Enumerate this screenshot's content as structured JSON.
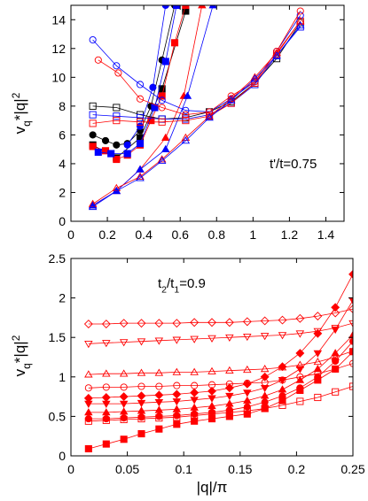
{
  "chart_data": [
    {
      "type": "line",
      "xlabel": "",
      "ylabel": "v_q*|q|^2",
      "annotation": "t'/t=0.75",
      "xlim": [
        0,
        1.5
      ],
      "ylim": [
        0,
        15
      ],
      "xticks": [
        "0",
        "0.2",
        "0.4",
        "0.6",
        "0.8",
        "1",
        "1.2",
        "1.4"
      ],
      "xtick_values": [
        0,
        0.2,
        0.4,
        0.6,
        0.8,
        1.0,
        1.2,
        1.4
      ],
      "yticks": [
        "0",
        "2",
        "4",
        "6",
        "8",
        "10",
        "12",
        "14"
      ],
      "ytick_values": [
        0,
        2,
        4,
        6,
        8,
        10,
        12,
        14
      ],
      "series": [
        {
          "color": "#000000",
          "marker": "filled-circle",
          "x": [
            0.12,
            0.19,
            0.25,
            0.31,
            0.38,
            0.44,
            0.5,
            0.57
          ],
          "y": [
            6.0,
            5.6,
            5.3,
            5.4,
            6.3,
            8.0,
            11.2,
            15.0
          ]
        },
        {
          "color": "#000000",
          "marker": "filled-square",
          "x": [
            0.12,
            0.25,
            0.38,
            0.5,
            0.63
          ],
          "y": [
            5.3,
            4.4,
            5.8,
            9.2,
            14.6
          ]
        },
        {
          "color": "#ff0000",
          "marker": "filled-square",
          "x": [
            0.12,
            0.19,
            0.25,
            0.31,
            0.38,
            0.44,
            0.5,
            0.57,
            0.63
          ],
          "y": [
            5.2,
            4.9,
            4.3,
            4.6,
            5.3,
            7.0,
            8.7,
            12.4,
            15.0
          ]
        },
        {
          "color": "#0000ff",
          "marker": "filled-square",
          "x": [
            0.15,
            0.22,
            0.31,
            0.38,
            0.46,
            0.52,
            0.58
          ],
          "y": [
            4.8,
            4.7,
            4.7,
            5.4,
            7.9,
            11.1,
            15.0
          ]
        },
        {
          "color": "#0000ff",
          "marker": "filled-circle",
          "x": [
            0.31,
            0.38,
            0.45,
            0.52
          ],
          "y": [
            5.3,
            6.6,
            9.3,
            15.0
          ]
        },
        {
          "color": "#ff0000",
          "marker": "filled-triangle",
          "x": [
            0.12,
            0.25,
            0.38,
            0.52,
            0.62,
            0.72
          ],
          "y": [
            1.1,
            2.1,
            3.6,
            5.8,
            8.7,
            15.0
          ]
        },
        {
          "color": "#0000ff",
          "marker": "filled-triangle",
          "x": [
            0.12,
            0.25,
            0.38,
            0.52,
            0.64,
            0.78
          ],
          "y": [
            1.1,
            2.1,
            3.6,
            5.0,
            8.7,
            15.0
          ]
        },
        {
          "color": "#000000",
          "marker": "open-square",
          "x": [
            0.12,
            0.25,
            0.38,
            0.5,
            0.63,
            0.76,
            0.88,
            1.01,
            1.13,
            1.26
          ],
          "y": [
            8.0,
            7.9,
            7.4,
            7.1,
            7.2,
            7.6,
            8.3,
            9.6,
            11.3,
            13.8
          ]
        },
        {
          "color": "#0000ff",
          "marker": "open-square",
          "x": [
            0.12,
            0.25,
            0.38,
            0.5,
            0.63,
            0.76,
            0.88,
            1.01,
            1.13,
            1.26
          ],
          "y": [
            7.4,
            7.3,
            7.2,
            7.1,
            7.1,
            7.4,
            8.2,
            9.5,
            11.5,
            13.5
          ]
        },
        {
          "color": "#ff0000",
          "marker": "open-square",
          "x": [
            0.12,
            0.25,
            0.38,
            0.5,
            0.63,
            0.76,
            0.88,
            1.01,
            1.13,
            1.26
          ],
          "y": [
            6.8,
            7.0,
            6.9,
            6.9,
            7.0,
            7.3,
            8.2,
            9.6,
            11.6,
            13.9
          ]
        },
        {
          "color": "#0000ff",
          "marker": "open-circle",
          "x": [
            0.12,
            0.25,
            0.38,
            0.5,
            0.63,
            0.76,
            0.88,
            1.01,
            1.13,
            1.26
          ],
          "y": [
            12.6,
            10.8,
            9.5,
            8.4,
            7.7,
            7.6,
            8.5,
            9.7,
            11.8,
            14.3
          ]
        },
        {
          "color": "#ff0000",
          "marker": "open-circle",
          "x": [
            0.15,
            0.26,
            0.38,
            0.5,
            0.63,
            0.76,
            0.88,
            1.01,
            1.13,
            1.26
          ],
          "y": [
            11.2,
            10.3,
            8.5,
            7.9,
            7.4,
            7.6,
            8.7,
            9.7,
            11.8,
            14.6
          ]
        },
        {
          "color": "#ff0000",
          "marker": "open-triangle",
          "x": [
            0.12,
            0.25,
            0.38,
            0.5,
            0.63,
            0.76,
            0.88,
            1.01,
            1.13,
            1.26
          ],
          "y": [
            1.2,
            2.3,
            3.1,
            4.3,
            5.8,
            7.3,
            8.5,
            10.0,
            11.7,
            13.9
          ]
        },
        {
          "color": "#0000ff",
          "marker": "open-triangle",
          "x": [
            0.12,
            0.25,
            0.38,
            0.5,
            0.63,
            0.76,
            0.88,
            1.01,
            1.13,
            1.26
          ],
          "y": [
            1.0,
            2.1,
            3.0,
            4.2,
            5.6,
            7.2,
            8.4,
            9.9,
            11.5,
            13.6
          ]
        }
      ]
    },
    {
      "type": "line",
      "xlabel": "|q|/π",
      "ylabel": "v_q*|q|^2",
      "annotation": "t_2/t_1=0.9",
      "xlim": [
        0,
        0.25
      ],
      "ylim": [
        0,
        2.5
      ],
      "xticks": [
        "0",
        "0.05",
        "0.1",
        "0.15",
        "0.2",
        "0.25"
      ],
      "xtick_values": [
        0,
        0.05,
        0.1,
        0.15,
        0.2,
        0.25
      ],
      "yticks": [
        "0",
        "0.5",
        "1",
        "1.5",
        "2",
        "2.5"
      ],
      "ytick_values": [
        0,
        0.5,
        1.0,
        1.5,
        2.0,
        2.5
      ],
      "series": [
        {
          "color": "#ff0000",
          "marker": "open-diamond",
          "x": [
            0.0156,
            0.0313,
            0.0469,
            0.0625,
            0.0781,
            0.0938,
            0.1094,
            0.125,
            0.1406,
            0.1563,
            0.1719,
            0.1875,
            0.2031,
            0.2188,
            0.2344,
            0.25
          ],
          "y": [
            1.67,
            1.67,
            1.68,
            1.68,
            1.68,
            1.68,
            1.69,
            1.69,
            1.69,
            1.7,
            1.71,
            1.72,
            1.74,
            1.77,
            1.81,
            1.86
          ]
        },
        {
          "color": "#ff0000",
          "marker": "open-down-triangle",
          "x": [
            0.0156,
            0.0313,
            0.0469,
            0.0625,
            0.0781,
            0.0938,
            0.1094,
            0.125,
            0.1406,
            0.1563,
            0.1719,
            0.1875,
            0.2031,
            0.2188,
            0.2344,
            0.25
          ],
          "y": [
            1.42,
            1.43,
            1.44,
            1.45,
            1.46,
            1.47,
            1.48,
            1.49,
            1.5,
            1.51,
            1.52,
            1.53,
            1.55,
            1.58,
            1.62,
            1.68
          ]
        },
        {
          "color": "#ff0000",
          "marker": "open-triangle",
          "x": [
            0.0156,
            0.0313,
            0.0469,
            0.0625,
            0.0781,
            0.0938,
            0.1094,
            0.125,
            0.1406,
            0.1563,
            0.1719,
            0.1875,
            0.2031,
            0.2188,
            0.2344,
            0.25
          ],
          "y": [
            1.03,
            1.04,
            1.04,
            1.05,
            1.05,
            1.06,
            1.06,
            1.07,
            1.08,
            1.09,
            1.1,
            1.12,
            1.15,
            1.19,
            1.25,
            1.33
          ]
        },
        {
          "color": "#ff0000",
          "marker": "open-circle",
          "x": [
            0.0156,
            0.0313,
            0.0469,
            0.0625,
            0.0781,
            0.0938,
            0.1094,
            0.125,
            0.1406,
            0.1563,
            0.1719,
            0.1875,
            0.2031,
            0.2188,
            0.2344,
            0.25
          ],
          "y": [
            0.86,
            0.87,
            0.87,
            0.88,
            0.88,
            0.89,
            0.89,
            0.9,
            0.91,
            0.92,
            0.93,
            0.96,
            1.0,
            1.04,
            1.1,
            1.17
          ]
        },
        {
          "color": "#ff0000",
          "marker": "open-square",
          "x": [
            0.0156,
            0.0313,
            0.0469,
            0.0625,
            0.0781,
            0.0938,
            0.1094,
            0.125,
            0.1406,
            0.1563,
            0.1719,
            0.1875,
            0.2031,
            0.2188,
            0.2344,
            0.25
          ],
          "y": [
            0.44,
            0.45,
            0.46,
            0.47,
            0.48,
            0.49,
            0.51,
            0.53,
            0.55,
            0.57,
            0.6,
            0.64,
            0.69,
            0.74,
            0.81,
            0.88
          ]
        },
        {
          "color": "#ff0000",
          "marker": "filled-diamond",
          "x": [
            0.0156,
            0.0313,
            0.0469,
            0.0625,
            0.0781,
            0.0938,
            0.1094,
            0.125,
            0.1406,
            0.1563,
            0.1719,
            0.1875,
            0.2031,
            0.2188,
            0.2344,
            0.25
          ],
          "y": [
            0.73,
            0.74,
            0.75,
            0.76,
            0.77,
            0.78,
            0.8,
            0.82,
            0.86,
            0.91,
            1.0,
            1.13,
            1.3,
            1.55,
            1.88,
            2.3
          ]
        },
        {
          "color": "#ff0000",
          "marker": "filled-down-triangle",
          "x": [
            0.0156,
            0.0313,
            0.0469,
            0.0625,
            0.0781,
            0.0938,
            0.1094,
            0.125,
            0.1406,
            0.1563,
            0.1719,
            0.1875,
            0.2031,
            0.2188,
            0.2344,
            0.25
          ],
          "y": [
            0.66,
            0.66,
            0.66,
            0.67,
            0.68,
            0.69,
            0.71,
            0.73,
            0.76,
            0.8,
            0.86,
            0.96,
            1.1,
            1.3,
            1.6,
            1.97
          ]
        },
        {
          "color": "#ff0000",
          "marker": "filled-triangle",
          "x": [
            0.0156,
            0.0313,
            0.0469,
            0.0625,
            0.0781,
            0.0938,
            0.1094,
            0.125,
            0.1406,
            0.1563,
            0.1719,
            0.1875,
            0.2031,
            0.2188,
            0.2344,
            0.25
          ],
          "y": [
            0.55,
            0.55,
            0.56,
            0.57,
            0.58,
            0.59,
            0.61,
            0.63,
            0.66,
            0.7,
            0.76,
            0.84,
            0.96,
            1.1,
            1.3,
            1.53
          ]
        },
        {
          "color": "#ff0000",
          "marker": "filled-circle",
          "x": [
            0.0156,
            0.0313,
            0.0469,
            0.0625,
            0.0781,
            0.0938,
            0.1094,
            0.125,
            0.1406,
            0.1563,
            0.1719,
            0.1875,
            0.2031,
            0.2188,
            0.2344,
            0.25
          ],
          "y": [
            0.47,
            0.47,
            0.48,
            0.49,
            0.5,
            0.51,
            0.53,
            0.55,
            0.58,
            0.62,
            0.68,
            0.76,
            0.86,
            1.0,
            1.2,
            1.45
          ]
        },
        {
          "color": "#ff0000",
          "marker": "filled-square",
          "x": [
            0.0156,
            0.0313,
            0.0469,
            0.0625,
            0.0781,
            0.0938,
            0.1094,
            0.125,
            0.1406,
            0.1563,
            0.1719,
            0.1875,
            0.2031,
            0.2188,
            0.2344,
            0.25
          ],
          "y": [
            0.09,
            0.15,
            0.21,
            0.28,
            0.34,
            0.4,
            0.44,
            0.47,
            0.5,
            0.53,
            0.6,
            0.7,
            0.83,
            0.96,
            1.1,
            1.32
          ]
        }
      ]
    }
  ]
}
